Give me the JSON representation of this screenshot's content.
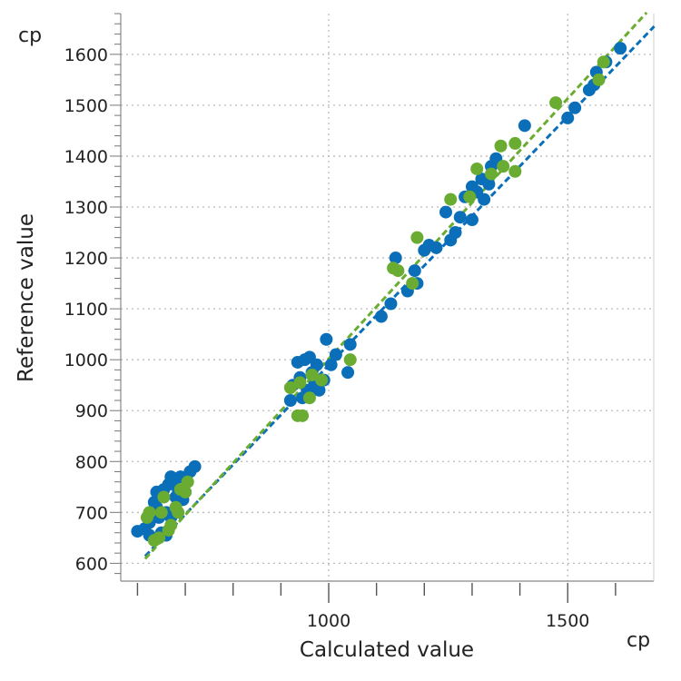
{
  "chart_data": {
    "type": "scatter",
    "xlabel": "Calculated value",
    "ylabel": "Reference value",
    "x_unit": "cp",
    "y_unit": "cp",
    "xlim": [
      565,
      1680
    ],
    "ylim": [
      565,
      1680
    ],
    "x_major_ticks": [
      1000,
      1500
    ],
    "x_minor_step": 100,
    "y_major_ticks": [
      600,
      700,
      800,
      900,
      1000,
      1100,
      1200,
      1300,
      1400,
      1500,
      1600
    ],
    "y_minor_step": 20,
    "grid": true,
    "colors": {
      "blue": "#0a6fb8",
      "green": "#6aac32",
      "grid": "#bbbbbb",
      "axis": "#888888"
    },
    "series": [
      {
        "color": "#0a6fb8",
        "points": [
          [
            600,
            663
          ],
          [
            615,
            668
          ],
          [
            625,
            680
          ],
          [
            630,
            700
          ],
          [
            635,
            720
          ],
          [
            640,
            710
          ],
          [
            645,
            690
          ],
          [
            650,
            735
          ],
          [
            655,
            745
          ],
          [
            660,
            700
          ],
          [
            665,
            755
          ],
          [
            670,
            770
          ],
          [
            675,
            760
          ],
          [
            680,
            730
          ],
          [
            690,
            770
          ],
          [
            695,
            725
          ],
          [
            700,
            740
          ],
          [
            710,
            780
          ],
          [
            720,
            790
          ],
          [
            650,
            660
          ],
          [
            660,
            655
          ],
          [
            670,
            690
          ],
          [
            685,
            745
          ],
          [
            640,
            740
          ],
          [
            625,
            655
          ],
          [
            920,
            920
          ],
          [
            925,
            950
          ],
          [
            935,
            995
          ],
          [
            940,
            965
          ],
          [
            950,
            1000
          ],
          [
            955,
            940
          ],
          [
            960,
            1005
          ],
          [
            965,
            975
          ],
          [
            970,
            950
          ],
          [
            975,
            990
          ],
          [
            980,
            940
          ],
          [
            990,
            960
          ],
          [
            995,
            1040
          ],
          [
            1005,
            990
          ],
          [
            1015,
            1010
          ],
          [
            1040,
            975
          ],
          [
            1045,
            1030
          ],
          [
            945,
            925
          ],
          [
            1110,
            1085
          ],
          [
            1130,
            1110
          ],
          [
            1140,
            1200
          ],
          [
            1165,
            1135
          ],
          [
            1180,
            1175
          ],
          [
            1185,
            1150
          ],
          [
            1200,
            1215
          ],
          [
            1210,
            1225
          ],
          [
            1225,
            1220
          ],
          [
            1245,
            1290
          ],
          [
            1255,
            1235
          ],
          [
            1265,
            1250
          ],
          [
            1275,
            1280
          ],
          [
            1285,
            1320
          ],
          [
            1300,
            1275
          ],
          [
            1300,
            1340
          ],
          [
            1310,
            1330
          ],
          [
            1320,
            1355
          ],
          [
            1325,
            1315
          ],
          [
            1335,
            1345
          ],
          [
            1340,
            1380
          ],
          [
            1350,
            1395
          ],
          [
            1410,
            1460
          ],
          [
            1500,
            1475
          ],
          [
            1515,
            1495
          ],
          [
            1545,
            1530
          ],
          [
            1555,
            1540
          ],
          [
            1560,
            1565
          ],
          [
            1580,
            1585
          ],
          [
            1610,
            1612
          ]
        ],
        "fit_line": [
          [
            616,
            614
          ],
          [
            1681,
            1655
          ]
        ]
      },
      {
        "color": "#6aac32",
        "points": [
          [
            620,
            690
          ],
          [
            625,
            700
          ],
          [
            635,
            645
          ],
          [
            645,
            650
          ],
          [
            655,
            730
          ],
          [
            665,
            665
          ],
          [
            670,
            675
          ],
          [
            680,
            710
          ],
          [
            685,
            700
          ],
          [
            690,
            745
          ],
          [
            700,
            740
          ],
          [
            705,
            760
          ],
          [
            650,
            700
          ],
          [
            920,
            945
          ],
          [
            935,
            890
          ],
          [
            945,
            890
          ],
          [
            960,
            925
          ],
          [
            965,
            970
          ],
          [
            985,
            960
          ],
          [
            1045,
            1000
          ],
          [
            940,
            955
          ],
          [
            1135,
            1180
          ],
          [
            1145,
            1175
          ],
          [
            1175,
            1150
          ],
          [
            1185,
            1240
          ],
          [
            1255,
            1315
          ],
          [
            1295,
            1320
          ],
          [
            1310,
            1375
          ],
          [
            1340,
            1365
          ],
          [
            1360,
            1420
          ],
          [
            1365,
            1380
          ],
          [
            1390,
            1425
          ],
          [
            1390,
            1370
          ],
          [
            1475,
            1505
          ],
          [
            1565,
            1550
          ],
          [
            1575,
            1585
          ]
        ],
        "fit_line": [
          [
            616,
            609
          ],
          [
            1665,
            1682
          ]
        ]
      }
    ]
  }
}
